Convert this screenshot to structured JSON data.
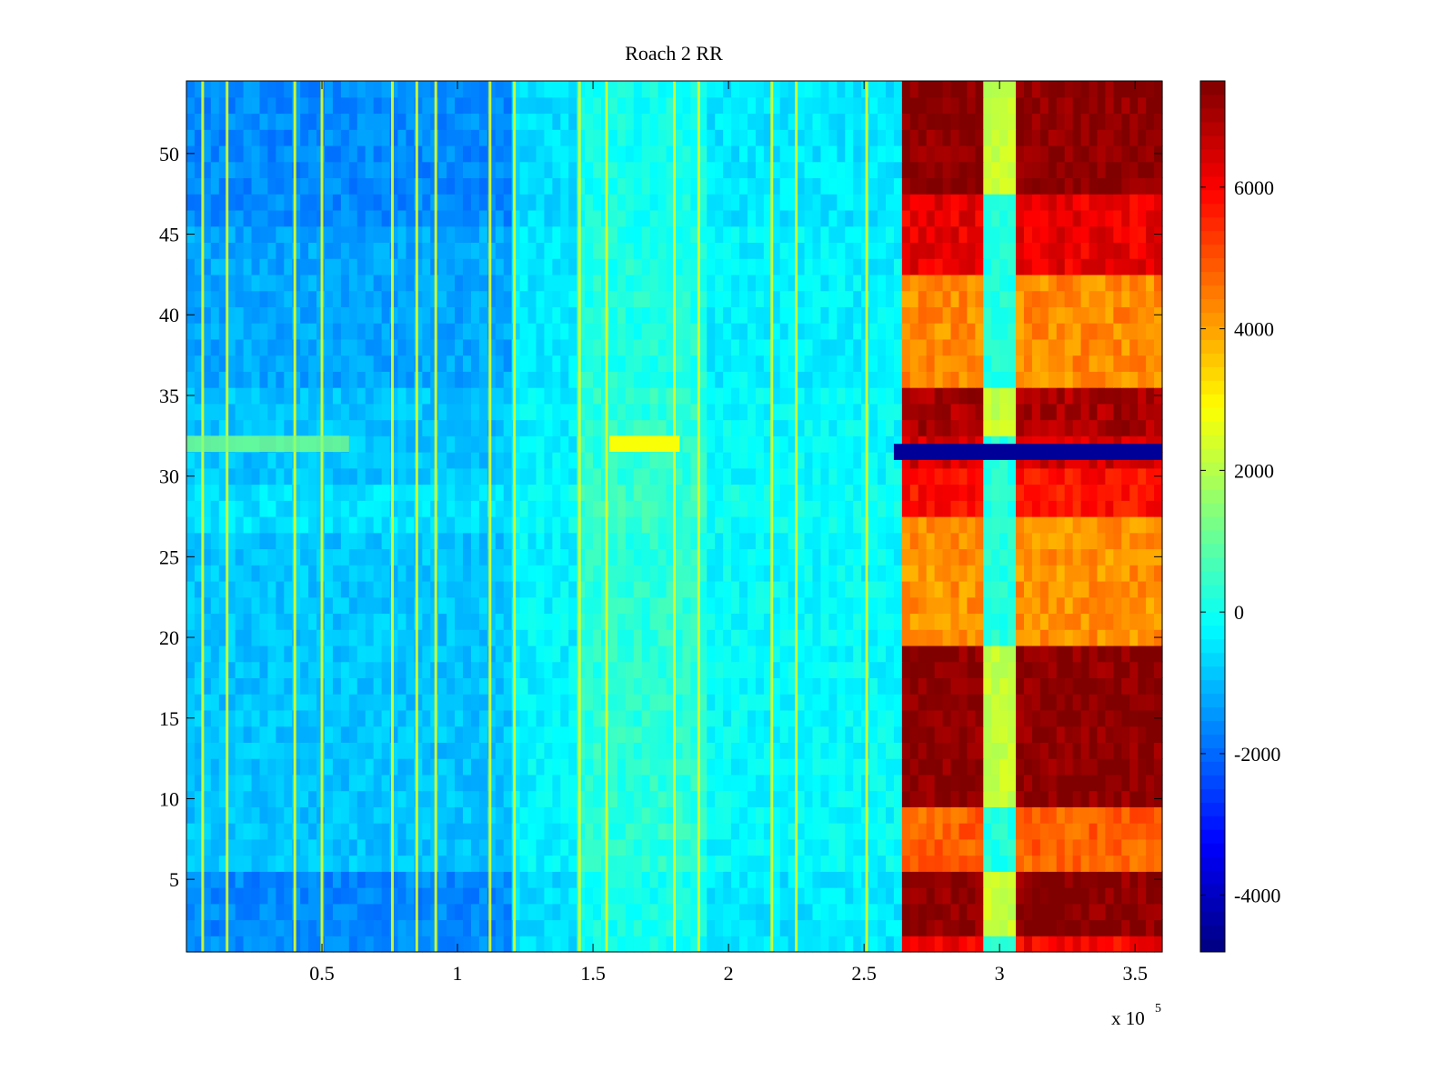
{
  "chart_data": {
    "type": "heatmap",
    "title": "Roach 2 RR",
    "xlabel": "",
    "ylabel": "",
    "x_multiplier_label": "x 10",
    "x_multiplier_exponent": "5",
    "xlim": [
      0,
      3.6
    ],
    "ylim": [
      0.5,
      54.5
    ],
    "x_ticks": [
      0.5,
      1,
      1.5,
      2,
      2.5,
      3,
      3.5
    ],
    "x_tick_labels": [
      "0.5",
      "1",
      "1.5",
      "2",
      "2.5",
      "3",
      "3.5"
    ],
    "y_ticks": [
      5,
      10,
      15,
      20,
      25,
      30,
      35,
      40,
      45,
      50
    ],
    "y_tick_labels": [
      "5",
      "10",
      "15",
      "20",
      "25",
      "30",
      "35",
      "40",
      "45",
      "50"
    ],
    "colorbar": {
      "colormap": "jet",
      "clim": [
        -4800,
        7500
      ],
      "ticks": [
        -4000,
        -2000,
        0,
        2000,
        4000,
        6000
      ],
      "tick_labels": [
        "-4000",
        "-2000",
        "0",
        "2000",
        "4000",
        "6000"
      ]
    },
    "rows": 54,
    "x_regions": [
      {
        "name": "blue-band",
        "x_start": 0.0,
        "x_end": 1.2,
        "base_value": -900
      },
      {
        "name": "cyan-mid",
        "x_start": 1.2,
        "x_end": 1.44,
        "base_value": -300
      },
      {
        "name": "greenish",
        "x_start": 1.44,
        "x_end": 1.92,
        "base_value": 300
      },
      {
        "name": "cyan-late",
        "x_start": 1.92,
        "x_end": 2.63,
        "base_value": -200
      },
      {
        "name": "hot-left",
        "x_start": 2.63,
        "x_end": 2.95,
        "base_value": 6500
      },
      {
        "name": "narrow-cool",
        "x_start": 2.95,
        "x_end": 3.06,
        "base_value": 1200
      },
      {
        "name": "hot-right",
        "x_start": 3.06,
        "x_end": 3.6,
        "base_value": 6700
      }
    ],
    "yellow_stripes_x": [
      0.06,
      0.15,
      0.4,
      0.5,
      0.76,
      0.85,
      0.92,
      1.12,
      1.21,
      1.45,
      1.55,
      1.8,
      1.89,
      2.16,
      2.25,
      2.51
    ],
    "anomaly_row": {
      "y": 31.5,
      "x_start": 2.61,
      "x_end": 3.6,
      "value": -4500
    },
    "hot_row_levels": [
      {
        "y_from": 0.5,
        "y_to": 2,
        "value": 6000
      },
      {
        "y_from": 2,
        "y_to": 5.5,
        "value": 7400
      },
      {
        "y_from": 5.5,
        "y_to": 9.5,
        "value": 4800
      },
      {
        "y_from": 9.5,
        "y_to": 19.5,
        "value": 7400
      },
      {
        "y_from": 19.5,
        "y_to": 27.5,
        "value": 4200
      },
      {
        "y_from": 27.5,
        "y_to": 31,
        "value": 5800
      },
      {
        "y_from": 32.5,
        "y_to": 35.5,
        "value": 7000
      },
      {
        "y_from": 35.5,
        "y_to": 42.5,
        "value": 4300
      },
      {
        "y_from": 42.5,
        "y_to": 47.5,
        "value": 6200
      },
      {
        "y_from": 47.5,
        "y_to": 54.5,
        "value": 7400
      }
    ]
  }
}
